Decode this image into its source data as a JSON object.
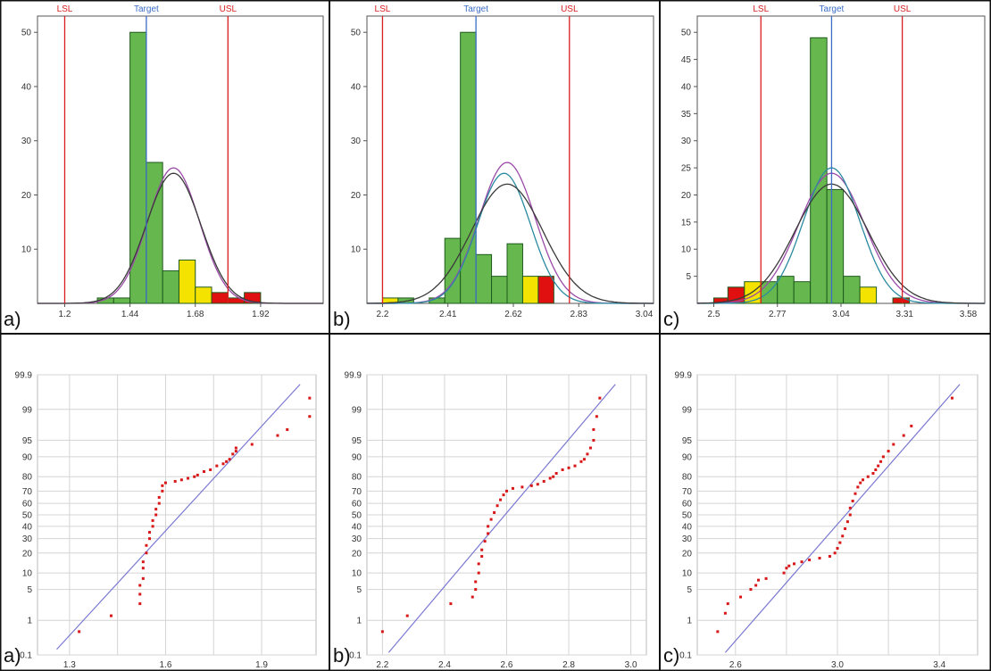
{
  "colors": {
    "bar_green": "#66b84e",
    "bar_yellow": "#f4e200",
    "bar_red": "#e01010",
    "bar_stroke": "#1e5a1e",
    "limit_red": "#d81e1e",
    "target_blue": "#3b6ec8",
    "curve_purple": "#9a4aa8",
    "curve_teal": "#2a8aa0",
    "curve_dark": "#3a3a3a",
    "point_red": "#d81818",
    "ref_line": "#7b78d2",
    "grid": "#d4d4d4",
    "frame": "#111111"
  },
  "chart_data": [
    {
      "type": "bar",
      "panel_label": "a)",
      "limit_labels": {
        "lsl": "LSL",
        "target": "Target",
        "usl": "USL"
      },
      "limits": {
        "lsl": 1.2,
        "target": 1.5,
        "usl": 1.8
      },
      "xlim": [
        1.1,
        2.15
      ],
      "ylim": [
        0,
        53
      ],
      "xticks": [
        1.2,
        1.44,
        1.68,
        1.92
      ],
      "xtick_labels": [
        "1.2",
        "1.44",
        "1.68",
        "1.92"
      ],
      "yticks": [
        10,
        20,
        30,
        40,
        50
      ],
      "ytick_labels": [
        "10",
        "20",
        "30",
        "40",
        "50"
      ],
      "bins": [
        {
          "x0": 1.32,
          "x1": 1.38,
          "value": 1,
          "color": "green"
        },
        {
          "x0": 1.38,
          "x1": 1.44,
          "value": 1,
          "color": "green"
        },
        {
          "x0": 1.44,
          "x1": 1.5,
          "value": 50,
          "color": "green"
        },
        {
          "x0": 1.5,
          "x1": 1.56,
          "value": 26,
          "color": "green"
        },
        {
          "x0": 1.56,
          "x1": 1.62,
          "value": 6,
          "color": "green"
        },
        {
          "x0": 1.62,
          "x1": 1.68,
          "value": 8,
          "color": "yellow"
        },
        {
          "x0": 1.68,
          "x1": 1.74,
          "value": 3,
          "color": "yellow"
        },
        {
          "x0": 1.74,
          "x1": 1.8,
          "value": 2,
          "color": "red"
        },
        {
          "x0": 1.8,
          "x1": 1.86,
          "value": 1,
          "color": "red"
        },
        {
          "x0": 1.86,
          "x1": 1.92,
          "value": 2,
          "color": "red"
        }
      ],
      "curves": [
        {
          "color": "purple",
          "mu": 1.6,
          "sigma": 0.095,
          "peak": 25
        },
        {
          "color": "dark",
          "mu": 1.6,
          "sigma": 0.1,
          "peak": 24
        }
      ]
    },
    {
      "type": "bar",
      "panel_label": "b)",
      "limit_labels": {
        "lsl": "LSL",
        "target": "Target",
        "usl": "USL"
      },
      "limits": {
        "lsl": 2.2,
        "target": 2.5,
        "usl": 2.8
      },
      "xlim": [
        2.15,
        3.07
      ],
      "ylim": [
        0,
        53
      ],
      "xticks": [
        2.2,
        2.41,
        2.62,
        2.83,
        3.04
      ],
      "xtick_labels": [
        "2.2",
        "2.41",
        "2.62",
        "2.83",
        "3.04"
      ],
      "yticks": [
        10,
        20,
        30,
        40,
        50
      ],
      "ytick_labels": [
        "10",
        "20",
        "30",
        "40",
        "50"
      ],
      "bins": [
        {
          "x0": 2.2,
          "x1": 2.25,
          "value": 1,
          "color": "yellow"
        },
        {
          "x0": 2.25,
          "x1": 2.3,
          "value": 1,
          "color": "green"
        },
        {
          "x0": 2.35,
          "x1": 2.4,
          "value": 1,
          "color": "green"
        },
        {
          "x0": 2.4,
          "x1": 2.45,
          "value": 12,
          "color": "green"
        },
        {
          "x0": 2.45,
          "x1": 2.5,
          "value": 50,
          "color": "green"
        },
        {
          "x0": 2.5,
          "x1": 2.55,
          "value": 9,
          "color": "green"
        },
        {
          "x0": 2.55,
          "x1": 2.6,
          "value": 5,
          "color": "green"
        },
        {
          "x0": 2.6,
          "x1": 2.65,
          "value": 11,
          "color": "green"
        },
        {
          "x0": 2.65,
          "x1": 2.7,
          "value": 5,
          "color": "yellow"
        },
        {
          "x0": 2.7,
          "x1": 2.75,
          "value": 5,
          "color": "red"
        }
      ],
      "curves": [
        {
          "color": "purple",
          "mu": 2.6,
          "sigma": 0.09,
          "peak": 26
        },
        {
          "color": "teal",
          "mu": 2.59,
          "sigma": 0.085,
          "peak": 24
        },
        {
          "color": "dark",
          "mu": 2.6,
          "sigma": 0.115,
          "peak": 22
        }
      ]
    },
    {
      "type": "bar",
      "panel_label": "c)",
      "limit_labels": {
        "lsl": "LSL",
        "target": "Target",
        "usl": "USL"
      },
      "limits": {
        "lsl": 2.7,
        "target": 3.0,
        "usl": 3.3
      },
      "xlim": [
        2.43,
        3.65
      ],
      "ylim": [
        0,
        53
      ],
      "xticks": [
        2.5,
        2.77,
        3.04,
        3.31,
        3.58
      ],
      "xtick_labels": [
        "2.5",
        "2.77",
        "3.04",
        "3.31",
        "3.58"
      ],
      "yticks": [
        5,
        10,
        15,
        20,
        25,
        30,
        35,
        40,
        45,
        50
      ],
      "ytick_labels": [
        "5",
        "10",
        "15",
        "20",
        "25",
        "30",
        "35",
        "40",
        "45",
        "50"
      ],
      "bins": [
        {
          "x0": 2.5,
          "x1": 2.56,
          "value": 1,
          "color": "red"
        },
        {
          "x0": 2.56,
          "x1": 2.63,
          "value": 3,
          "color": "red"
        },
        {
          "x0": 2.63,
          "x1": 2.7,
          "value": 4,
          "color": "yellow"
        },
        {
          "x0": 2.7,
          "x1": 2.77,
          "value": 4,
          "color": "green"
        },
        {
          "x0": 2.77,
          "x1": 2.84,
          "value": 5,
          "color": "green"
        },
        {
          "x0": 2.84,
          "x1": 2.91,
          "value": 4,
          "color": "green"
        },
        {
          "x0": 2.91,
          "x1": 2.98,
          "value": 49,
          "color": "green"
        },
        {
          "x0": 2.98,
          "x1": 3.05,
          "value": 21,
          "color": "green"
        },
        {
          "x0": 3.05,
          "x1": 3.12,
          "value": 5,
          "color": "green"
        },
        {
          "x0": 3.12,
          "x1": 3.19,
          "value": 3,
          "color": "yellow"
        },
        {
          "x0": 3.26,
          "x1": 3.33,
          "value": 1,
          "color": "red"
        }
      ],
      "curves": [
        {
          "color": "purple",
          "mu": 3.0,
          "sigma": 0.14,
          "peak": 24
        },
        {
          "color": "teal",
          "mu": 3.0,
          "sigma": 0.12,
          "peak": 25
        },
        {
          "color": "dark",
          "mu": 3.0,
          "sigma": 0.155,
          "peak": 22
        }
      ]
    },
    {
      "type": "scatter",
      "panel_label": "a)",
      "xlim": [
        1.2,
        2.07
      ],
      "xticks": [
        1.3,
        1.6,
        1.9
      ],
      "xtick_labels": [
        "1.3",
        "1.6",
        "1.9"
      ],
      "x_gridlines": [
        1.3,
        1.45,
        1.6,
        1.75,
        1.9
      ],
      "yticks": [
        0.1,
        1,
        5,
        10,
        20,
        30,
        40,
        50,
        60,
        70,
        80,
        90,
        95,
        99,
        99.9
      ],
      "ytick_labels": [
        "0.1",
        "1",
        "5",
        "10",
        "20",
        "30",
        "40",
        "50",
        "60",
        "70",
        "80",
        "90",
        "95",
        "99",
        "99.9"
      ],
      "ref_line": {
        "x": [
          1.26,
          2.02
        ],
        "y": [
          0.15,
          99.8
        ]
      },
      "points": {
        "x": [
          1.33,
          1.43,
          1.52,
          1.52,
          1.52,
          1.53,
          1.53,
          1.53,
          1.54,
          1.54,
          1.55,
          1.55,
          1.56,
          1.56,
          1.57,
          1.57,
          1.58,
          1.58,
          1.59,
          1.59,
          1.6,
          1.63,
          1.65,
          1.67,
          1.69,
          1.7,
          1.72,
          1.74,
          1.76,
          1.78,
          1.79,
          1.8,
          1.81,
          1.82,
          1.82,
          1.87,
          1.95,
          1.98,
          2.05,
          2.05
        ],
        "y": [
          0.5,
          1.3,
          2.5,
          4,
          6,
          8,
          12,
          15,
          20,
          25,
          30,
          35,
          40,
          45,
          50,
          55,
          60,
          65,
          70,
          74,
          76,
          77,
          78,
          79,
          80,
          81,
          83,
          84,
          86,
          87,
          88,
          89,
          91,
          92,
          93,
          94,
          96,
          97,
          98.5,
          99.5
        ]
      }
    },
    {
      "type": "scatter",
      "panel_label": "b)",
      "xlim": [
        2.15,
        3.05
      ],
      "xticks": [
        2.2,
        2.4,
        2.6,
        2.8,
        3.0
      ],
      "xtick_labels": [
        "2.2",
        "2.4",
        "2.6",
        "2.8",
        "3.0"
      ],
      "x_gridlines": [
        2.2,
        2.4,
        2.6,
        2.8,
        3.0
      ],
      "yticks": [
        0.1,
        1,
        5,
        10,
        20,
        30,
        40,
        50,
        60,
        70,
        80,
        90,
        95,
        99,
        99.9
      ],
      "ytick_labels": [
        "0.1",
        "1",
        "5",
        "10",
        "20",
        "30",
        "40",
        "50",
        "60",
        "70",
        "80",
        "90",
        "95",
        "99",
        "99.9"
      ],
      "ref_line": {
        "x": [
          2.22,
          2.95
        ],
        "y": [
          0.12,
          99.8
        ]
      },
      "points": {
        "x": [
          2.2,
          2.28,
          2.42,
          2.49,
          2.5,
          2.5,
          2.51,
          2.51,
          2.52,
          2.52,
          2.53,
          2.54,
          2.54,
          2.55,
          2.56,
          2.57,
          2.58,
          2.59,
          2.6,
          2.62,
          2.65,
          2.68,
          2.7,
          2.72,
          2.74,
          2.75,
          2.76,
          2.78,
          2.8,
          2.82,
          2.84,
          2.85,
          2.86,
          2.87,
          2.88,
          2.88,
          2.89,
          2.9
        ],
        "y": [
          0.5,
          1.3,
          2.5,
          3.5,
          5,
          7,
          10,
          14,
          18,
          22,
          28,
          34,
          40,
          46,
          52,
          58,
          63,
          67,
          70,
          72,
          73,
          74,
          75,
          77,
          79,
          80,
          82,
          84,
          85,
          86,
          88,
          89,
          91,
          93,
          95,
          97,
          98.5,
          99.5
        ]
      }
    },
    {
      "type": "scatter",
      "panel_label": "c)",
      "xlim": [
        2.45,
        3.55
      ],
      "xticks": [
        2.6,
        3.0,
        3.4
      ],
      "xtick_labels": [
        "2.6",
        "3.0",
        "3.4"
      ],
      "x_gridlines": [
        2.6,
        2.8,
        3.0,
        3.2,
        3.4
      ],
      "yticks": [
        0.1,
        1,
        5,
        10,
        20,
        30,
        40,
        50,
        60,
        70,
        80,
        90,
        95,
        99,
        99.9
      ],
      "ytick_labels": [
        "0.1",
        "1",
        "5",
        "10",
        "20",
        "30",
        "40",
        "50",
        "60",
        "70",
        "80",
        "90",
        "95",
        "99",
        "99.9"
      ],
      "ref_line": {
        "x": [
          2.56,
          3.48
        ],
        "y": [
          0.12,
          99.8
        ]
      },
      "points": {
        "x": [
          2.53,
          2.56,
          2.57,
          2.62,
          2.66,
          2.68,
          2.69,
          2.72,
          2.79,
          2.8,
          2.81,
          2.83,
          2.86,
          2.89,
          2.93,
          2.97,
          2.99,
          3.0,
          3.01,
          3.02,
          3.03,
          3.04,
          3.05,
          3.05,
          3.06,
          3.07,
          3.08,
          3.09,
          3.1,
          3.12,
          3.14,
          3.15,
          3.16,
          3.17,
          3.18,
          3.2,
          3.22,
          3.26,
          3.29,
          3.45
        ],
        "y": [
          0.5,
          1.5,
          2.5,
          3.5,
          5,
          6,
          7.5,
          8,
          10,
          12,
          13,
          14,
          15,
          16,
          17,
          18,
          20,
          23,
          27,
          32,
          38,
          44,
          50,
          56,
          62,
          68,
          73,
          76,
          78,
          80,
          82,
          84,
          86,
          88,
          90,
          92,
          94,
          96,
          97.5,
          99.5
        ]
      }
    }
  ]
}
